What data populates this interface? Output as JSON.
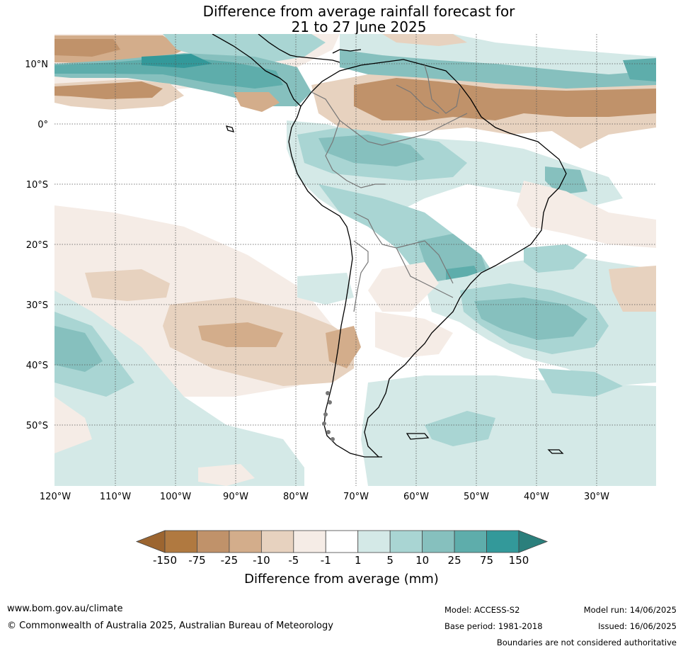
{
  "title": {
    "line1": "Difference from average rainfall forecast for",
    "line2": "21 to 27 June 2025"
  },
  "axes": {
    "lat_labels": [
      "10°N",
      "0°",
      "10°S",
      "20°S",
      "30°S",
      "40°S",
      "50°S"
    ],
    "lon_labels": [
      "120°W",
      "110°W",
      "100°W",
      "90°W",
      "80°W",
      "70°W",
      "60°W",
      "50°W",
      "40°W",
      "30°W"
    ]
  },
  "colorbar": {
    "ticks": [
      "-150",
      "-75",
      "-25",
      "-10",
      "-5",
      "-1",
      "1",
      "5",
      "10",
      "25",
      "75",
      "150"
    ],
    "colors": [
      "#9c6530",
      "#b07940",
      "#c0926a",
      "#d3ad8b",
      "#e7d2bf",
      "#f5ece6",
      "#ffffff",
      "#d4e9e7",
      "#a9d5d3",
      "#86c0be",
      "#5eadab",
      "#33999a",
      "#2b7f7c"
    ],
    "title": "Difference from average (mm)"
  },
  "footer": {
    "website": "www.bom.gov.au/climate",
    "copyright": "© Commonwealth of Australia 2025, Australian Bureau of Meteorology",
    "model": "Model: ACCESS-S2",
    "base_period": "Base period: 1981-2018",
    "model_run": "Model run: 14/06/2025",
    "issued": "Issued: 16/06/2025",
    "disclaimer": "Boundaries are not considered authoritative"
  }
}
